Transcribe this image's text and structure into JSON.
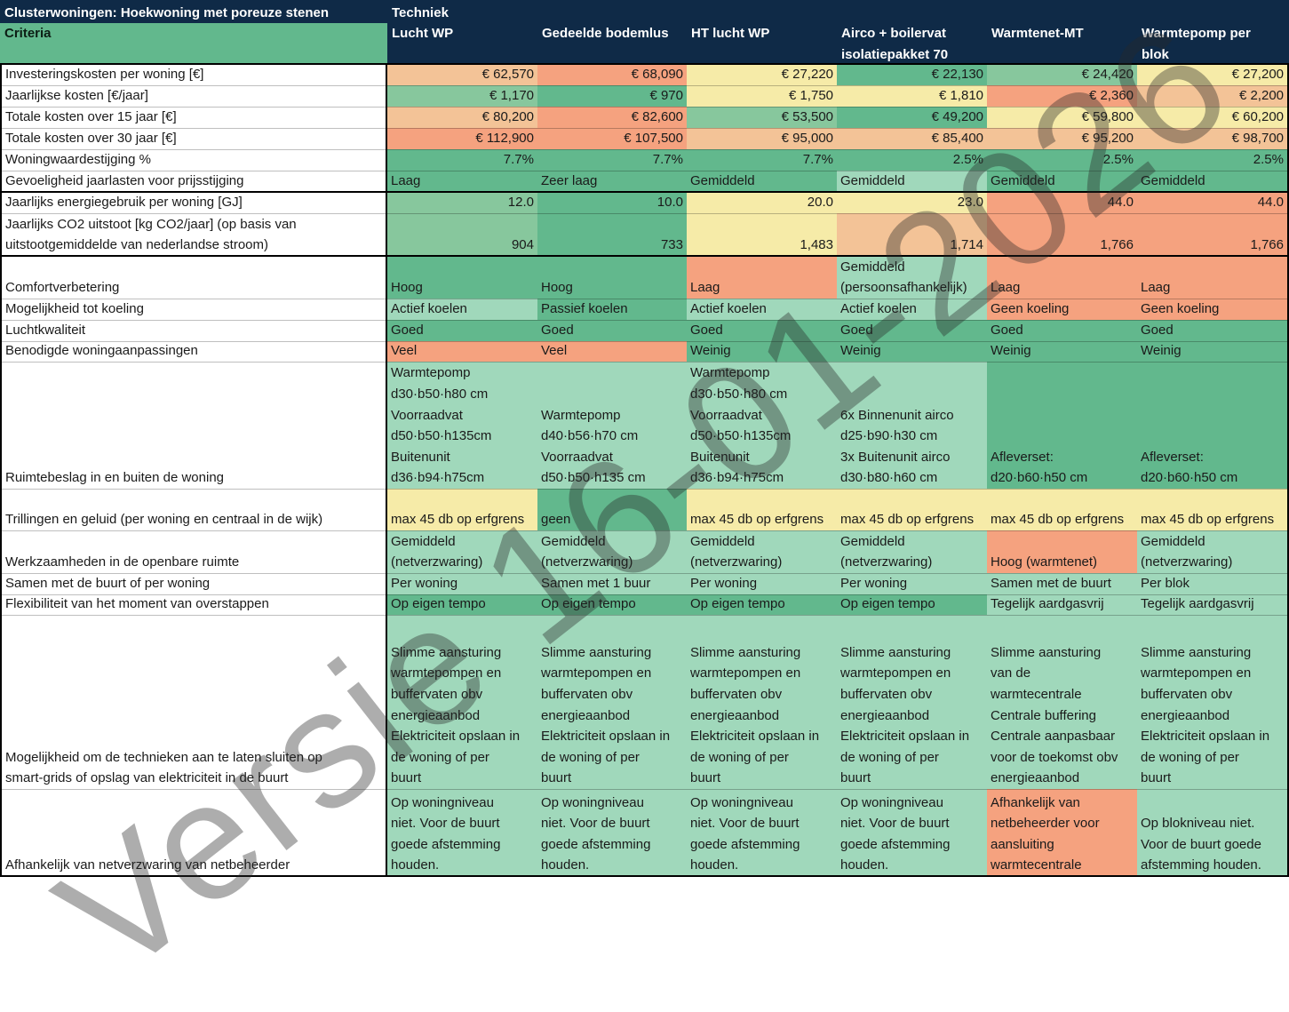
{
  "header": {
    "title": "Clusterwoningen: Hoekwoning met poreuze stenen",
    "criteria_label": "Criteria",
    "techniek_label": "Techniek"
  },
  "colors": {
    "dark_green": "#62b88d",
    "green": "#87c79d",
    "light_green": "#a0d8bb",
    "yellow": "#f6eba8",
    "light_orange": "#f3c397",
    "orange": "#f5a27f",
    "header_navy": "#0f2a47"
  },
  "columns": [
    [
      "Lucht WP"
    ],
    [
      "Gedeelde bodemlus"
    ],
    [
      "HT lucht WP"
    ],
    [
      "Airco + boilervat",
      "isolatiepakket 70"
    ],
    [
      "Warmtenet-MT"
    ],
    [
      "Warmtepomp per",
      "blok"
    ]
  ],
  "rows": [
    {
      "label": [
        "Investeringskosten per woning [€]"
      ],
      "numeric": true,
      "values": [
        [
          "€ 62,570"
        ],
        [
          "€ 68,090"
        ],
        [
          "€ 27,220"
        ],
        [
          "€ 22,130"
        ],
        [
          "€ 24,420"
        ],
        [
          "€ 27,200"
        ]
      ],
      "colors": [
        "light_orange",
        "orange",
        "yellow",
        "dark_green",
        "green",
        "yellow"
      ]
    },
    {
      "label": [
        "Jaarlijkse kosten  [€/jaar]"
      ],
      "numeric": true,
      "values": [
        [
          "€ 1,170"
        ],
        [
          "€ 970"
        ],
        [
          "€ 1,750"
        ],
        [
          "€ 1,810"
        ],
        [
          "€ 2,360"
        ],
        [
          "€ 2,200"
        ]
      ],
      "colors": [
        "green",
        "dark_green",
        "yellow",
        "yellow",
        "orange",
        "light_orange"
      ]
    },
    {
      "label": [
        "Totale kosten over 15 jaar  [€]"
      ],
      "numeric": true,
      "values": [
        [
          "€ 80,200"
        ],
        [
          "€ 82,600"
        ],
        [
          "€ 53,500"
        ],
        [
          "€ 49,200"
        ],
        [
          "€ 59,800"
        ],
        [
          "€ 60,200"
        ]
      ],
      "colors": [
        "light_orange",
        "orange",
        "green",
        "dark_green",
        "yellow",
        "yellow"
      ]
    },
    {
      "label": [
        "Totale kosten over 30 jaar  [€]"
      ],
      "numeric": true,
      "values": [
        [
          "€ 112,900"
        ],
        [
          "€ 107,500"
        ],
        [
          "€ 95,000"
        ],
        [
          "€ 85,400"
        ],
        [
          "€ 95,200"
        ],
        [
          "€ 98,700"
        ]
      ],
      "colors": [
        "orange",
        "orange",
        "light_orange",
        "light_orange",
        "light_orange",
        "light_orange"
      ]
    },
    {
      "label": [
        "Woningwaardestijging %"
      ],
      "numeric": true,
      "values": [
        [
          "7.7%"
        ],
        [
          "7.7%"
        ],
        [
          "7.7%"
        ],
        [
          "2.5%"
        ],
        [
          "2.5%"
        ],
        [
          "2.5%"
        ]
      ],
      "colors": [
        "dark_green",
        "dark_green",
        "dark_green",
        "dark_green",
        "dark_green",
        "dark_green"
      ]
    },
    {
      "label": [
        "Gevoeligheid jaarlasten voor prijsstijging"
      ],
      "numeric": false,
      "values": [
        [
          "Laag"
        ],
        [
          "Zeer laag"
        ],
        [
          "Gemiddeld"
        ],
        [
          "Gemiddeld"
        ],
        [
          "Gemiddeld"
        ],
        [
          "Gemiddeld"
        ]
      ],
      "colors": [
        "dark_green",
        "dark_green",
        "dark_green",
        "light_green",
        "dark_green",
        "dark_green"
      ]
    },
    {
      "label": [
        "Jaarlijks energiegebruik per woning  [GJ]"
      ],
      "numeric": true,
      "values": [
        [
          "12.0"
        ],
        [
          "10.0"
        ],
        [
          "20.0"
        ],
        [
          "23.0"
        ],
        [
          "44.0"
        ],
        [
          "44.0"
        ]
      ],
      "colors": [
        "green",
        "dark_green",
        "yellow",
        "yellow",
        "orange",
        "orange"
      ]
    },
    {
      "label": [
        "Jaarlijks CO2 uitstoot  [kg CO2/jaar] (op basis van",
        "uitstootgemiddelde van nederlandse stroom)"
      ],
      "numeric": true,
      "values": [
        [
          "904"
        ],
        [
          "733"
        ],
        [
          "1,483"
        ],
        [
          "1,714"
        ],
        [
          "1,766"
        ],
        [
          "1,766"
        ]
      ],
      "colors": [
        "green",
        "dark_green",
        "yellow",
        "light_orange",
        "orange",
        "orange"
      ]
    },
    {
      "label": [
        "Comfortverbetering"
      ],
      "numeric": false,
      "values": [
        [
          "Hoog"
        ],
        [
          "Hoog"
        ],
        [
          "Laag"
        ],
        [
          "Gemiddeld",
          "(persoonsafhankelijk)"
        ],
        [
          "Laag"
        ],
        [
          "Laag"
        ]
      ],
      "colors": [
        "dark_green",
        "dark_green",
        "orange",
        "light_green",
        "orange",
        "orange"
      ]
    },
    {
      "label": [
        "Mogelijkheid tot koeling"
      ],
      "numeric": false,
      "values": [
        [
          "Actief koelen"
        ],
        [
          "Passief koelen"
        ],
        [
          "Actief koelen"
        ],
        [
          "Actief koelen"
        ],
        [
          "Geen koeling"
        ],
        [
          "Geen koeling"
        ]
      ],
      "colors": [
        "light_green",
        "dark_green",
        "light_green",
        "light_green",
        "orange",
        "orange"
      ]
    },
    {
      "label": [
        "Luchtkwaliteit"
      ],
      "numeric": false,
      "values": [
        [
          "Goed"
        ],
        [
          "Goed"
        ],
        [
          "Goed"
        ],
        [
          "Goed"
        ],
        [
          "Goed"
        ],
        [
          "Goed"
        ]
      ],
      "colors": [
        "dark_green",
        "dark_green",
        "dark_green",
        "dark_green",
        "dark_green",
        "dark_green"
      ]
    },
    {
      "label": [
        "Benodigde woningaanpassingen"
      ],
      "numeric": false,
      "values": [
        [
          "Veel"
        ],
        [
          "Veel"
        ],
        [
          "Weinig"
        ],
        [
          "Weinig"
        ],
        [
          "Weinig"
        ],
        [
          "Weinig"
        ]
      ],
      "colors": [
        "orange",
        "orange",
        "dark_green",
        "dark_green",
        "dark_green",
        "dark_green"
      ]
    },
    {
      "label": [
        "Ruimtebeslag in en buiten de woning"
      ],
      "numeric": false,
      "values": [
        [
          "Warmtepomp",
          "d30·b50·h80 cm",
          "Voorraadvat",
          "d50·b50·h135cm",
          "Buitenunit",
          "d36·b94·h75cm"
        ],
        [
          "Warmtepomp",
          "d40·b56·h70 cm",
          "Voorraadvat",
          "d50·b50·h135 cm"
        ],
        [
          "Warmtepomp",
          "d30·b50·h80 cm",
          "Voorraadvat",
          "d50·b50·h135cm",
          "Buitenunit",
          "d36·b94·h75cm"
        ],
        [
          "6x Binnenunit airco",
          "d25·b90·h30 cm",
          "3x Buitenunit airco",
          "d30·b80·h60 cm"
        ],
        [
          "Afleverset:",
          "d20·b60·h50 cm"
        ],
        [
          "Afleverset:",
          "d20·b60·h50 cm"
        ]
      ],
      "colors": [
        "light_green",
        "light_green",
        "light_green",
        "light_green",
        "dark_green",
        "dark_green"
      ]
    },
    {
      "label": [
        "Trillingen en geluid (per woning en centraal in de wijk)"
      ],
      "numeric": false,
      "values": [
        [
          "max 45 db op erfgrens"
        ],
        [
          "geen"
        ],
        [
          "max 45 db op erfgrens"
        ],
        [
          "max 45 db op erfgrens"
        ],
        [
          "max 45 db op erfgrens"
        ],
        [
          "max 45 db op erfgrens"
        ]
      ],
      "colors": [
        "yellow",
        "dark_green",
        "yellow",
        "yellow",
        "yellow",
        "yellow"
      ]
    },
    {
      "label": [
        "Werkzaamheden in de openbare ruimte"
      ],
      "numeric": false,
      "values": [
        [
          "Gemiddeld",
          "(netverzwaring)"
        ],
        [
          "Gemiddeld",
          "(netverzwaring)"
        ],
        [
          "Gemiddeld",
          "(netverzwaring)"
        ],
        [
          "Gemiddeld",
          "(netverzwaring)"
        ],
        [
          "Hoog (warmtenet)"
        ],
        [
          "Gemiddeld",
          "(netverzwaring)"
        ]
      ],
      "colors": [
        "light_green",
        "light_green",
        "light_green",
        "light_green",
        "orange",
        "light_green"
      ]
    },
    {
      "label": [
        "Samen met de buurt of per woning"
      ],
      "numeric": false,
      "values": [
        [
          "Per woning"
        ],
        [
          "Samen met 1 buur"
        ],
        [
          "Per woning"
        ],
        [
          "Per woning"
        ],
        [
          "Samen met de buurt"
        ],
        [
          "Per blok"
        ]
      ],
      "colors": [
        "light_green",
        "light_green",
        "light_green",
        "light_green",
        "light_green",
        "light_green"
      ]
    },
    {
      "label": [
        "Flexibiliteit van het moment van overstappen"
      ],
      "numeric": false,
      "values": [
        [
          "Op eigen tempo"
        ],
        [
          "Op eigen tempo"
        ],
        [
          "Op eigen tempo"
        ],
        [
          "Op eigen tempo"
        ],
        [
          "Tegelijk aardgasvrij"
        ],
        [
          "Tegelijk aardgasvrij"
        ]
      ],
      "colors": [
        "dark_green",
        "dark_green",
        "dark_green",
        "dark_green",
        "light_green",
        "light_green"
      ]
    },
    {
      "label": [
        "Mogelijkheid om de technieken aan te laten sluiten op",
        "smart-grids of opslag van elektriciteit in de buurt"
      ],
      "numeric": false,
      "values": [
        [
          "Slimme aansturing",
          "warmtepompen en",
          "buffervaten obv",
          "energieaanbod",
          "Elektriciteit opslaan in",
          "de woning of per",
          "buurt"
        ],
        [
          "Slimme aansturing",
          "warmtepompen en",
          "buffervaten obv",
          "energieaanbod",
          "Elektriciteit opslaan in",
          "de woning of per",
          "buurt"
        ],
        [
          "Slimme aansturing",
          "warmtepompen en",
          "buffervaten obv",
          "energieaanbod",
          "Elektriciteit opslaan in",
          "de woning of per",
          "buurt"
        ],
        [
          "Slimme aansturing",
          "warmtepompen en",
          "buffervaten obv",
          "energieaanbod",
          "Elektriciteit opslaan in",
          "de woning of per",
          "buurt"
        ],
        [
          "Slimme aansturing",
          "van de",
          "warmtecentrale",
          "Centrale buffering",
          "Centrale aanpasbaar",
          "voor de toekomst obv",
          "energieaanbod"
        ],
        [
          "Slimme aansturing",
          "warmtepompen en",
          "buffervaten obv",
          "energieaanbod",
          "Elektriciteit opslaan in",
          "de woning of per",
          "buurt"
        ]
      ],
      "colors": [
        "light_green",
        "light_green",
        "light_green",
        "light_green",
        "light_green",
        "light_green"
      ]
    },
    {
      "label": [
        "Afhankelijk van netverzwaring van netbeheerder"
      ],
      "numeric": false,
      "values": [
        [
          "Op woningniveau",
          "niet. Voor de buurt",
          "goede afstemming",
          "houden."
        ],
        [
          "Op woningniveau",
          "niet. Voor de buurt",
          "goede afstemming",
          "houden."
        ],
        [
          "Op woningniveau",
          "niet. Voor de buurt",
          "goede afstemming",
          "houden."
        ],
        [
          "Op woningniveau",
          "niet. Voor de buurt",
          "goede afstemming",
          "houden."
        ],
        [
          "Afhankelijk van",
          "netbeheerder voor",
          "aansluiting",
          "warmtecentrale"
        ],
        [
          "Op blokniveau niet.",
          "Voor de buurt goede",
          "afstemming houden."
        ]
      ],
      "colors": [
        "light_green",
        "light_green",
        "light_green",
        "light_green",
        "orange",
        "light_green"
      ]
    }
  ],
  "watermark": "Versie 16-01-2026"
}
